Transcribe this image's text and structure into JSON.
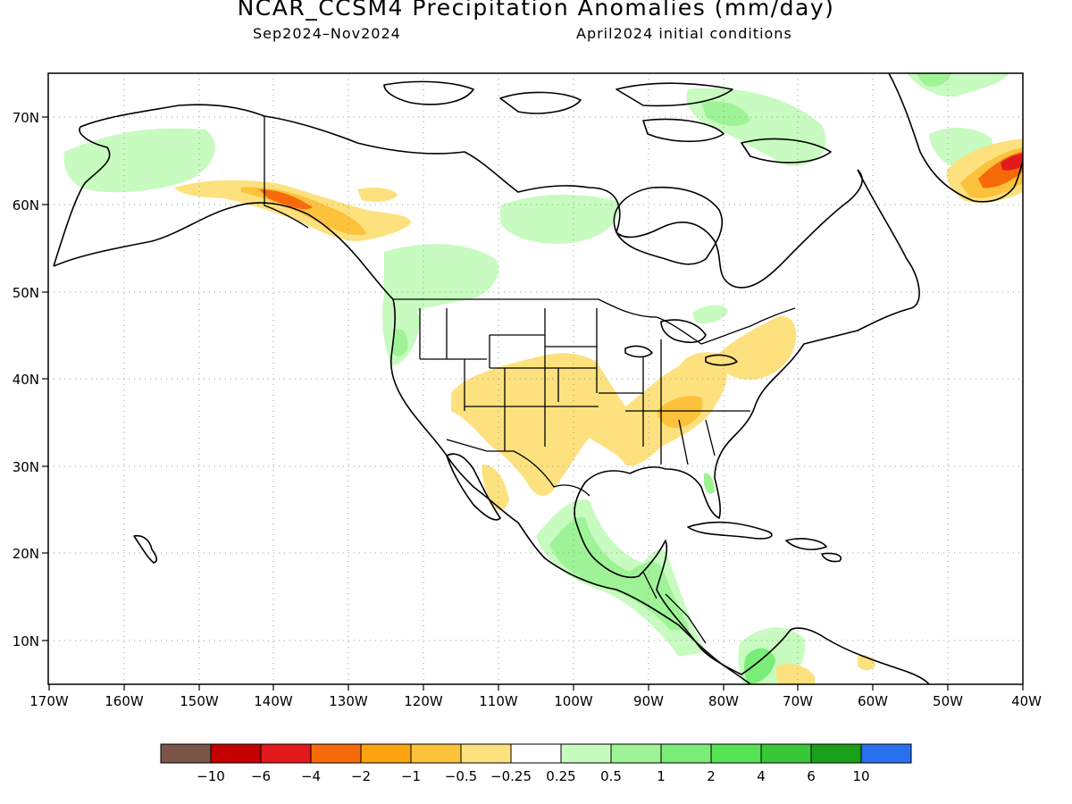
{
  "title": "NCAR_CCSM4 Precipitation Anomalies (mm/day)",
  "period": "Sep2024–Nov2024",
  "initial_conditions": "April2024 initial conditions",
  "lat_labels": [
    "70N",
    "60N",
    "50N",
    "40N",
    "30N",
    "20N",
    "10N"
  ],
  "lon_labels": [
    "170W",
    "160W",
    "150W",
    "140W",
    "130W",
    "120W",
    "110W",
    "100W",
    "90W",
    "80W",
    "70W",
    "60W",
    "50W",
    "40W"
  ],
  "colorbar": {
    "colors": [
      "#7a5548",
      "#c40000",
      "#e31a1c",
      "#f76a0a",
      "#fca40f",
      "#fcc23c",
      "#fde17e",
      "#ffffff",
      "#c7fbbf",
      "#9ef396",
      "#7aec78",
      "#54e454",
      "#38c838",
      "#18a018",
      "#2870f0"
    ],
    "labels": [
      "−10",
      "−6",
      "−4",
      "−2",
      "−1",
      "−0.5",
      "−0.25",
      "0.25",
      "0.5",
      "1",
      "2",
      "4",
      "6",
      "10"
    ]
  },
  "colors": {
    "dry_light": "#fde17e",
    "dry_mid": "#fcc23c",
    "dry_strong": "#fca40f",
    "dry_stronger": "#f76a0a",
    "wet_light": "#c7fbbf",
    "wet_mid": "#9ef396",
    "wet_strong": "#7aec78",
    "wet_stronger": "#54e454",
    "wet_max": "#38c838"
  }
}
